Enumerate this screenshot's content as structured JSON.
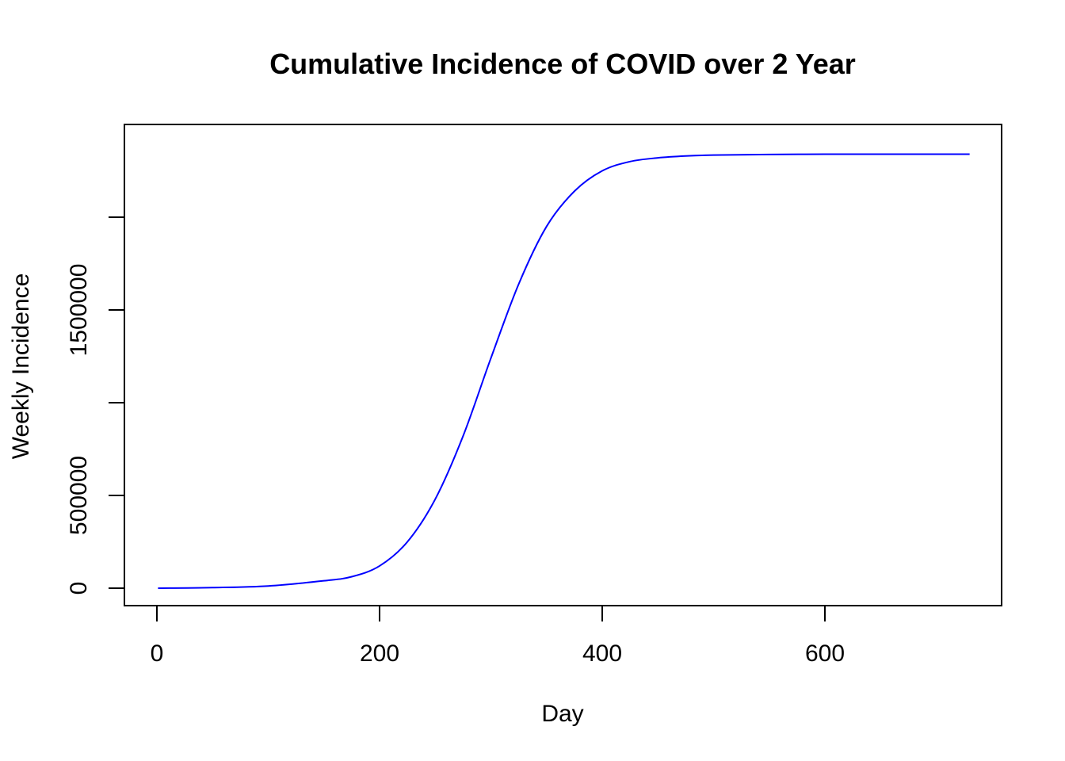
{
  "chart_data": {
    "type": "line",
    "title": "Cumulative Incidence of COVID over 2 Year",
    "xlabel": "Day",
    "ylabel": "Weekly Incidence",
    "xlim": [
      0,
      730
    ],
    "ylim": [
      0,
      2400000
    ],
    "x_ticks": [
      0,
      200,
      400,
      600
    ],
    "x_tick_labels": [
      "0",
      "200",
      "400",
      "600"
    ],
    "y_ticks": [
      0,
      500000,
      1000000,
      1500000,
      2000000
    ],
    "y_tick_labels": [
      "0",
      "500000",
      "",
      "1500000",
      ""
    ],
    "grid": false,
    "legend": "none",
    "series": [
      {
        "color": "#0000ff",
        "x": [
          1,
          50,
          100,
          150,
          175,
          200,
          225,
          250,
          275,
          300,
          325,
          350,
          375,
          400,
          425,
          450,
          475,
          500,
          550,
          600,
          650,
          700,
          730
        ],
        "y": [
          0,
          3000,
          12000,
          40000,
          62000,
          120000,
          250000,
          480000,
          820000,
          1240000,
          1640000,
          1950000,
          2140000,
          2250000,
          2300000,
          2320000,
          2330000,
          2335000,
          2338000,
          2340000,
          2340000,
          2340000,
          2340000
        ]
      }
    ]
  }
}
